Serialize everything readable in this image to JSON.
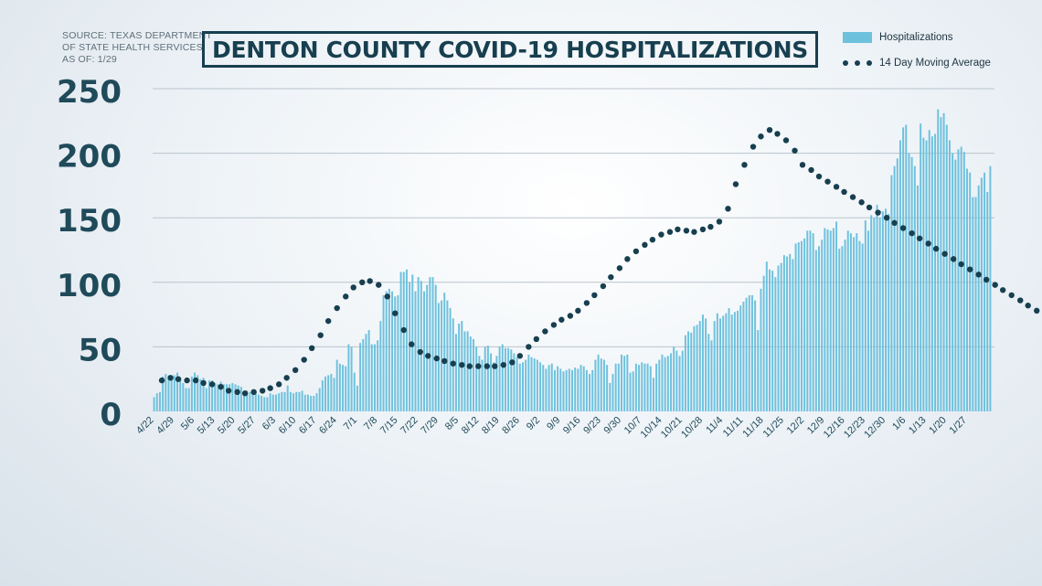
{
  "source": {
    "line1": "SOURCE: TEXAS DEPARTMENT",
    "line2": "OF STATE HEALTH SERVICES",
    "line3": "AS OF: 1/29"
  },
  "title": "DENTON COUNTY COVID-19 HOSPITALIZATIONS",
  "legend": {
    "bars_label": "Hospitalizations",
    "line_label": "14 Day Moving Average"
  },
  "colors": {
    "bar": "#6ec1dd",
    "dots": "#173f4f",
    "axis_text": "#1f4a5a",
    "grid": "#b9c4cc"
  },
  "chart_data": {
    "type": "bar",
    "title": "DENTON COUNTY COVID-19 HOSPITALIZATIONS",
    "xlabel": "",
    "ylabel": "",
    "ylim": [
      0,
      250
    ],
    "yticks": [
      0,
      50,
      100,
      150,
      200,
      250
    ],
    "grid": true,
    "legend_position": "top-right",
    "x_tick_labels": [
      "4/22",
      "4/29",
      "5/6",
      "5/13",
      "5/20",
      "5/27",
      "6/3",
      "6/10",
      "6/17",
      "6/24",
      "7/1",
      "7/8",
      "7/15",
      "7/22",
      "7/29",
      "8/5",
      "8/12",
      "8/19",
      "8/26",
      "9/2",
      "9/9",
      "9/16",
      "9/23",
      "9/30",
      "10/7",
      "10/14",
      "10/21",
      "10/28",
      "11/4",
      "11/11",
      "11/18",
      "11/25",
      "12/2",
      "12/9",
      "12/16",
      "12/23",
      "12/30",
      "1/6",
      "1/13",
      "1/20",
      "1/27"
    ],
    "series": [
      {
        "name": "Hospitalizations",
        "type": "bar",
        "start_date": "4/22",
        "values": [
          11,
          14,
          15,
          27,
          29,
          28,
          28,
          28,
          30,
          26,
          22,
          18,
          18,
          27,
          30,
          28,
          25,
          26,
          18,
          24,
          24,
          22,
          21,
          23,
          21,
          21,
          21,
          22,
          21,
          20,
          19,
          16,
          16,
          15,
          16,
          14,
          13,
          12,
          11,
          11,
          14,
          13,
          13,
          14,
          15,
          15,
          20,
          15,
          14,
          15,
          15,
          16,
          13,
          13,
          12,
          12,
          14,
          18,
          24,
          27,
          28,
          29,
          26,
          40,
          37,
          36,
          35,
          52,
          50,
          30,
          20,
          53,
          56,
          60,
          63,
          52,
          52,
          55,
          70,
          90,
          93,
          95,
          93,
          89,
          90,
          108,
          108,
          110,
          100,
          106,
          93,
          104,
          101,
          93,
          98,
          104,
          104,
          98,
          84,
          86,
          92,
          86,
          80,
          72,
          60,
          68,
          70,
          62,
          62,
          58,
          56,
          50,
          43,
          40,
          50,
          51,
          45,
          38,
          43,
          50,
          52,
          49,
          49,
          48,
          45,
          42,
          37,
          38,
          40,
          44,
          42,
          41,
          40,
          38,
          36,
          33,
          36,
          37,
          32,
          35,
          33,
          31,
          32,
          33,
          32,
          34,
          33,
          36,
          35,
          32,
          29,
          32,
          40,
          44,
          41,
          40,
          36,
          22,
          29,
          37,
          37,
          44,
          43,
          44,
          30,
          31,
          37,
          36,
          38,
          37,
          37,
          35,
          26,
          37,
          40,
          44,
          42,
          43,
          45,
          50,
          47,
          43,
          47,
          59,
          62,
          61,
          66,
          67,
          70,
          75,
          72,
          60,
          55,
          70,
          76,
          72,
          74,
          76,
          80,
          75,
          77,
          78,
          82,
          85,
          88,
          90,
          90,
          86,
          63,
          95,
          105,
          116,
          110,
          109,
          104,
          113,
          115,
          121,
          120,
          122,
          118,
          130,
          131,
          132,
          134,
          140,
          140,
          138,
          125,
          128,
          133,
          142,
          141,
          140,
          142,
          147,
          126,
          128,
          133,
          140,
          138,
          135,
          138,
          132,
          130,
          148,
          140,
          152,
          150,
          160,
          150,
          155,
          157,
          153,
          183,
          190,
          196,
          210,
          220,
          222,
          200,
          197,
          190,
          175,
          223,
          212,
          210,
          218,
          213,
          215,
          234,
          228,
          231,
          222,
          210,
          200,
          195,
          203,
          205,
          201,
          188,
          185,
          166,
          166,
          175,
          181,
          185,
          170,
          190
        ]
      },
      {
        "name": "14 Day Moving Average",
        "type": "scatter",
        "x_index": [
          8,
          17,
          25,
          34,
          43,
          51,
          60,
          69,
          77,
          86,
          94,
          103,
          112,
          120,
          129,
          137,
          146,
          155,
          163,
          172,
          180,
          189,
          198,
          206,
          215,
          223,
          232,
          241,
          249,
          258,
          266,
          275,
          283,
          292,
          300,
          309,
          318,
          326,
          335,
          344,
          352,
          361,
          370,
          378,
          387,
          395,
          404,
          413,
          421,
          430,
          438,
          447,
          455,
          464,
          472,
          481,
          489,
          498,
          507,
          515,
          524,
          533,
          541,
          550,
          558,
          567,
          575,
          584,
          593,
          601,
          610,
          619,
          627,
          636,
          644,
          653,
          662,
          670,
          679,
          687,
          696,
          705,
          713,
          722,
          731,
          739,
          748,
          757,
          765,
          774,
          783,
          791,
          800,
          808,
          817,
          826,
          834,
          843,
          852,
          860,
          869,
          877,
          886,
          895,
          903,
          912
        ],
        "values": [
          24,
          26,
          25,
          24,
          24,
          22,
          21,
          19,
          16,
          15,
          14,
          15,
          16,
          18,
          21,
          26,
          32,
          40,
          49,
          59,
          70,
          80,
          89,
          96,
          100,
          101,
          98,
          89,
          76,
          63,
          52,
          46,
          43,
          41,
          39,
          37,
          36,
          35,
          35,
          35,
          35,
          36,
          38,
          43,
          50,
          56,
          62,
          67,
          71,
          74,
          78,
          84,
          90,
          97,
          104,
          111,
          118,
          124,
          129,
          133,
          137,
          139,
          141,
          140,
          139,
          141,
          143,
          147,
          157,
          176,
          191,
          205,
          213,
          218,
          215,
          210,
          202,
          191,
          187,
          182,
          178,
          174,
          170,
          166,
          162,
          158,
          154,
          150,
          146,
          142,
          138,
          134,
          130,
          126,
          122,
          118,
          114,
          110,
          106,
          102,
          98,
          94,
          90,
          86,
          82,
          78
        ]
      }
    ]
  }
}
